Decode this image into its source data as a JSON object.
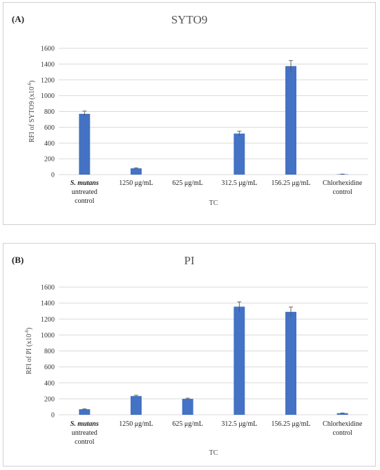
{
  "chart_data": [
    {
      "panel": "(A)",
      "type": "bar",
      "title": "SYTO9",
      "xlabel": "TC",
      "ylabel_main": "RFI of SYTO9 (x10",
      "ylabel_exp": "-6",
      "ylabel_end": ")",
      "ylim": [
        0,
        1600
      ],
      "yticks": [
        0,
        200,
        400,
        600,
        800,
        1000,
        1200,
        1400,
        1600
      ],
      "grid": true,
      "categories": [
        {
          "lines": [
            "S. mutans",
            "untreated",
            "control"
          ],
          "italic_first": true
        },
        {
          "lines": [
            "1250 μg/mL"
          ]
        },
        {
          "lines": [
            "625 μg/mL"
          ]
        },
        {
          "lines": [
            "312.5 μg/mL"
          ]
        },
        {
          "lines": [
            "156.25 μg/mL"
          ]
        },
        {
          "lines": [
            "Chlorhexidine",
            "control"
          ]
        }
      ],
      "values": [
        770,
        80,
        0,
        520,
        1375,
        5
      ],
      "errors": [
        35,
        6,
        0,
        30,
        70,
        2
      ]
    },
    {
      "panel": "(B)",
      "type": "bar",
      "title": "PI",
      "xlabel": "TC",
      "ylabel_main": "RFI of PI (x10",
      "ylabel_exp": "-6",
      "ylabel_end": ")",
      "ylim": [
        0,
        1600
      ],
      "yticks": [
        0,
        200,
        400,
        600,
        800,
        1000,
        1200,
        1400,
        1600
      ],
      "grid": true,
      "categories": [
        {
          "lines": [
            "S. mutans",
            "untreated",
            "control"
          ],
          "italic_first": true
        },
        {
          "lines": [
            "1250 μg/mL"
          ]
        },
        {
          "lines": [
            "625 μg/mL"
          ]
        },
        {
          "lines": [
            "312.5 μg/mL"
          ]
        },
        {
          "lines": [
            "156.25 μg/mL"
          ]
        },
        {
          "lines": [
            "Chlorhexidine",
            "control"
          ]
        }
      ],
      "values": [
        70,
        235,
        200,
        1355,
        1290,
        20
      ],
      "errors": [
        5,
        10,
        8,
        60,
        60,
        3
      ]
    }
  ],
  "colors": {
    "bar": "#4472c4",
    "grid": "#d9d9d9",
    "error_bar": "#555555"
  }
}
